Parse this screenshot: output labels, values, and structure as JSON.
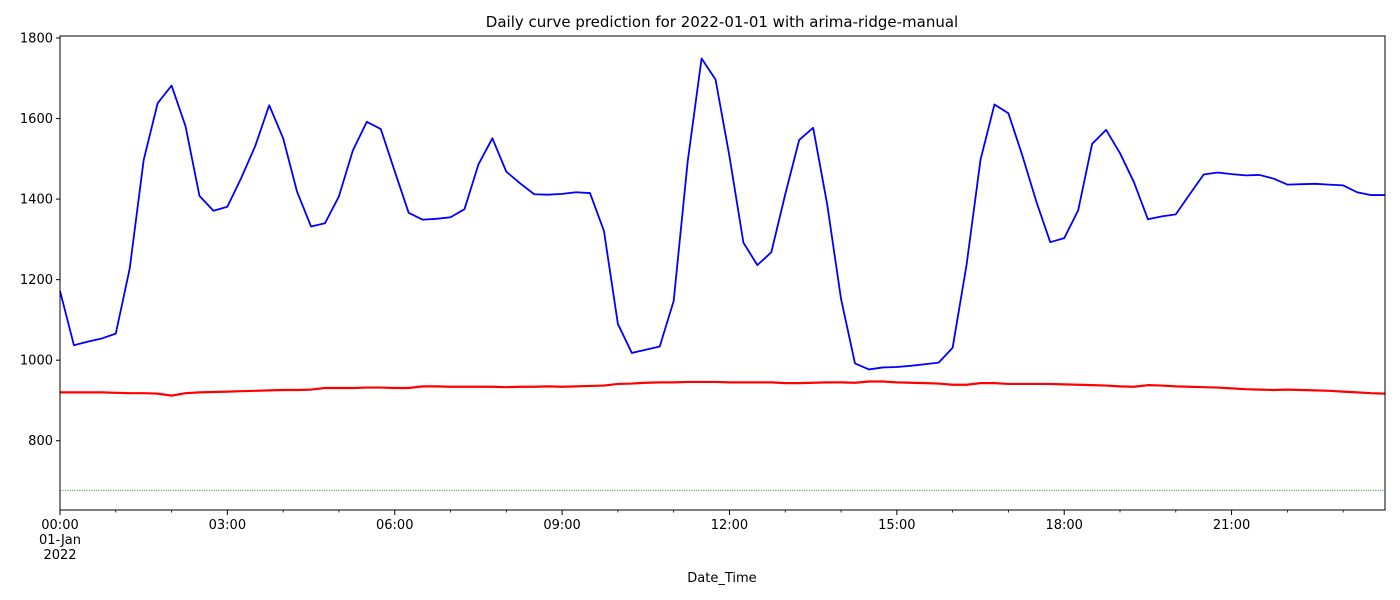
{
  "chart_data": {
    "type": "line",
    "title": "Daily curve prediction for 2022-01-01 with arima-ridge-manual",
    "xlabel": "Date_Time",
    "ylabel": "",
    "xlim": [
      "00:00",
      "23:45"
    ],
    "ylim": [
      628,
      1805
    ],
    "grid": false,
    "legend": "none",
    "x_interval_minutes": 15,
    "x_ticks": [
      {
        "value": "00:00",
        "lines": [
          "00:00",
          "01-Jan",
          "2022"
        ]
      },
      {
        "value": "03:00",
        "lines": [
          "03:00"
        ]
      },
      {
        "value": "06:00",
        "lines": [
          "06:00"
        ]
      },
      {
        "value": "09:00",
        "lines": [
          "09:00"
        ]
      },
      {
        "value": "12:00",
        "lines": [
          "12:00"
        ]
      },
      {
        "value": "15:00",
        "lines": [
          "15:00"
        ]
      },
      {
        "value": "18:00",
        "lines": [
          "18:00"
        ]
      },
      {
        "value": "21:00",
        "lines": [
          "21:00"
        ]
      }
    ],
    "y_ticks": [
      800,
      1000,
      1200,
      1400,
      1600,
      1800
    ],
    "series": [
      {
        "color": "#0000ff",
        "values": [
          1172,
          1037,
          1046,
          1054,
          1066,
          1228,
          1497,
          1638,
          1682,
          1581,
          1408,
          1371,
          1381,
          1453,
          1532,
          1633,
          1551,
          1418,
          1332,
          1340,
          1407,
          1521,
          1592,
          1574,
          1469,
          1366,
          1349,
          1351,
          1355,
          1375,
          1486,
          1551,
          1468,
          1439,
          1412,
          1411,
          1413,
          1417,
          1415,
          1321,
          1090,
          1018,
          1026,
          1034,
          1147,
          1492,
          1749,
          1697,
          1506,
          1292,
          1236,
          1268,
          1412,
          1547,
          1577,
          1388,
          1152,
          992,
          977,
          982,
          983,
          986,
          990,
          994,
          1031,
          1237,
          1498,
          1635,
          1613,
          1508,
          1394,
          1293,
          1303,
          1372,
          1537,
          1572,
          1514,
          1442,
          1350,
          1357,
          1362,
          1412,
          1461,
          1466,
          1462,
          1459,
          1460,
          1451,
          1436,
          1437,
          1438,
          1436,
          1434,
          1417,
          1410,
          1410
        ]
      },
      {
        "color": "#ff0000",
        "values": [
          920,
          920,
          920,
          920,
          919,
          918,
          918,
          917,
          912,
          918,
          920,
          921,
          922,
          923,
          924,
          925,
          926,
          926,
          927,
          931,
          931,
          931,
          932,
          932,
          931,
          931,
          935,
          935,
          934,
          934,
          934,
          934,
          933,
          934,
          934,
          935,
          934,
          935,
          936,
          937,
          941,
          942,
          944,
          945,
          945,
          946,
          946,
          946,
          945,
          945,
          945,
          945,
          943,
          943,
          944,
          945,
          945,
          944,
          947,
          947,
          945,
          944,
          943,
          942,
          939,
          939,
          943,
          943,
          941,
          941,
          941,
          941,
          940,
          939,
          938,
          937,
          935,
          934,
          938,
          937,
          935,
          934,
          933,
          932,
          930,
          928,
          927,
          926,
          927,
          926,
          925,
          924,
          922,
          920,
          918,
          917
        ]
      }
    ],
    "reference_line": {
      "y": 677,
      "color": "#007f00",
      "style": "dotted"
    }
  }
}
